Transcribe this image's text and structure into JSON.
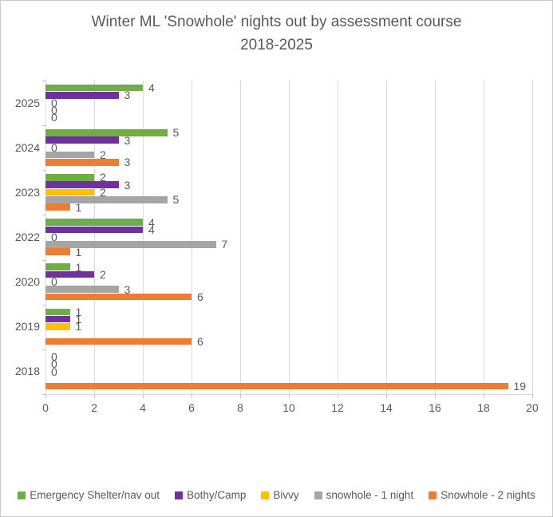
{
  "title": {
    "line1": "Winter ML 'Snowhole' nights out by assessment course",
    "line2": "2018-2025"
  },
  "chart_data": {
    "type": "bar",
    "orientation": "horizontal",
    "title": "Winter ML 'Snowhole' nights out by assessment course 2018-2025",
    "categories": [
      "2025",
      "2024",
      "2023",
      "2022",
      "2020",
      "2019",
      "2018"
    ],
    "series": [
      {
        "name": "Emergency Shelter/nav out",
        "color": "#70AD47",
        "values": [
          4,
          5,
          2,
          4,
          1,
          1,
          0
        ]
      },
      {
        "name": "Bothy/Camp",
        "color": "#7030A0",
        "values": [
          3,
          3,
          3,
          4,
          2,
          1,
          0
        ]
      },
      {
        "name": "Bivvy",
        "color": "#FFC000",
        "values": [
          0,
          0,
          2,
          0,
          0,
          1,
          0
        ]
      },
      {
        "name": "snowhole - 1 night",
        "color": "#A5A5A5",
        "values": [
          0,
          2,
          5,
          7,
          3,
          null,
          null
        ]
      },
      {
        "name": "Snowhole - 2 nights",
        "color": "#ED7D31",
        "values": [
          0,
          3,
          1,
          1,
          6,
          6,
          19
        ]
      }
    ],
    "x_axis": {
      "min": 0,
      "max": 20,
      "step": 2,
      "tick_labels": [
        "0",
        "2",
        "4",
        "6",
        "8",
        "10",
        "12",
        "14",
        "16",
        "18",
        "20"
      ]
    },
    "grid": true,
    "data_labels": true,
    "legend_position": "bottom"
  },
  "colors": {
    "text": "#595959",
    "gridline": "#D9D9D9",
    "border": "#C9C9C9",
    "background": "#FFFFFF"
  }
}
